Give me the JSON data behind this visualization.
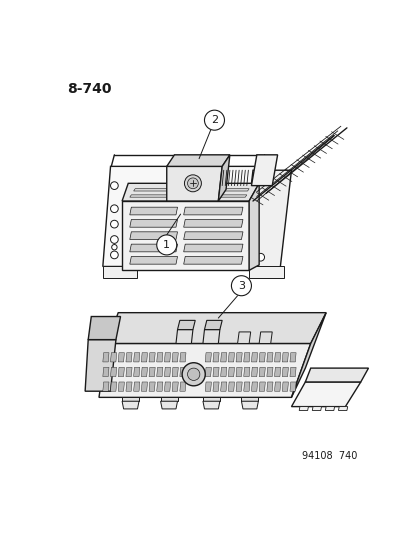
{
  "page_number": "8-740",
  "footer_text": "94108  740",
  "bg": "#ffffff",
  "lc": "#1a1a1a",
  "fill_front": "#f5f5f5",
  "fill_top": "#e8e8e8",
  "fill_side": "#dcdcdc",
  "fill_vent": "#e0e0e0"
}
